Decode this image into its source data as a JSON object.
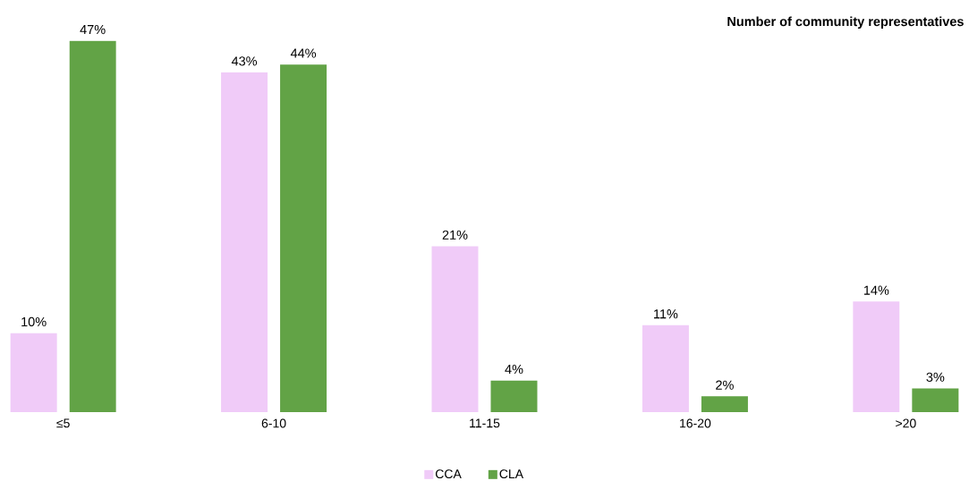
{
  "chart_data": {
    "type": "bar",
    "title": "Number of community representatives",
    "categories": [
      "≤5",
      "6-10",
      "11-15",
      "16-20",
      ">20"
    ],
    "series": [
      {
        "name": "CCA",
        "color": "#f0cbf8",
        "values": [
          10,
          43,
          21,
          11,
          14
        ],
        "value_labels": [
          "10%",
          "43%",
          "21%",
          "11%",
          "14%"
        ]
      },
      {
        "name": "CLA",
        "color": "#62a346",
        "values": [
          47,
          44,
          4,
          2,
          3
        ],
        "value_labels": [
          "47%",
          "44%",
          "4%",
          "2%",
          "3%"
        ]
      }
    ],
    "legend": "bottom"
  }
}
